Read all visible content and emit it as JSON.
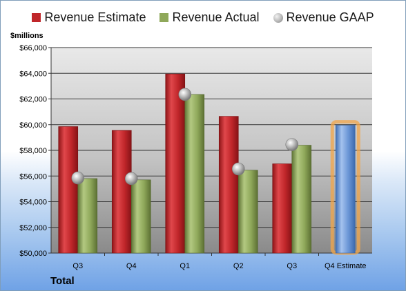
{
  "chart_data": {
    "type": "bar",
    "categories": [
      "Q3",
      "Q4",
      "Q1",
      "Q2",
      "Q3",
      "Q4 Estimate"
    ],
    "series": [
      {
        "name": "Revenue Estimate",
        "type": "bar",
        "color": "#c0262a",
        "values": [
          59850,
          59550,
          63950,
          60650,
          56950,
          null
        ]
      },
      {
        "name": "Revenue Actual",
        "type": "bar",
        "color": "#8fa85a",
        "values": [
          55800,
          55700,
          62350,
          56450,
          58400,
          null
        ]
      },
      {
        "name": "Revenue GAAP",
        "type": "marker",
        "color": "#a6a6a6",
        "values": [
          55850,
          55800,
          62350,
          56550,
          58450,
          null
        ]
      },
      {
        "name": "",
        "type": "bar",
        "color": "#6b96d6",
        "highlight": "#f2a64a",
        "values": [
          null,
          null,
          null,
          null,
          null,
          59950
        ]
      }
    ],
    "ylim": [
      50000,
      66000
    ],
    "yticks": [
      50000,
      52000,
      54000,
      56000,
      58000,
      60000,
      62000,
      64000,
      66000
    ],
    "ytick_labels": [
      "$50,000",
      "$52,000",
      "$54,000",
      "$56,000",
      "$58,000",
      "$60,000",
      "$62,000",
      "$64,000",
      "$66,000"
    ],
    "ylabel": "$millions",
    "xlabel": "Total",
    "legend_position": "top",
    "grid": true
  }
}
